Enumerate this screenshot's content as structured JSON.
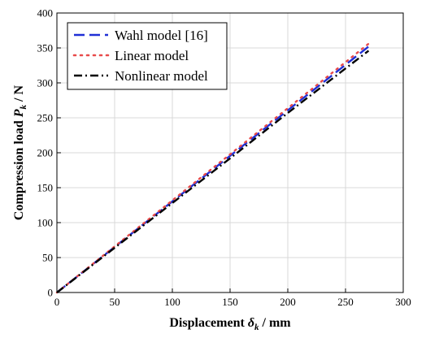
{
  "chart_data": {
    "type": "line",
    "xlabel": {
      "text": "Displacement ",
      "symbol": "δ",
      "sub": "k",
      "unit": " / mm"
    },
    "ylabel": {
      "text": "Compression load ",
      "symbol": "P",
      "sub": "k",
      "unit": " / N"
    },
    "xlim": [
      0,
      300
    ],
    "ylim": [
      0,
      400
    ],
    "xticks": [
      "0",
      "50",
      "100",
      "150",
      "200",
      "250",
      "300"
    ],
    "yticks": [
      "0",
      "50",
      "100",
      "150",
      "200",
      "250",
      "300",
      "350",
      "400"
    ],
    "grid": true,
    "legend_position": "top-left",
    "series": [
      {
        "name": "Wahl model [16]",
        "color": "#1f2fd6",
        "style": "dashed",
        "x": [
          0,
          270
        ],
        "y": [
          0,
          352
        ]
      },
      {
        "name": "Linear model",
        "color": "#e84a4a",
        "style": "dotted",
        "x": [
          0,
          270
        ],
        "y": [
          0,
          356
        ]
      },
      {
        "name": "Nonlinear model",
        "color": "#000000",
        "style": "dashdot",
        "x": [
          0,
          50,
          100,
          150,
          200,
          270
        ],
        "y": [
          0,
          64,
          128,
          192,
          257,
          346
        ]
      }
    ]
  }
}
